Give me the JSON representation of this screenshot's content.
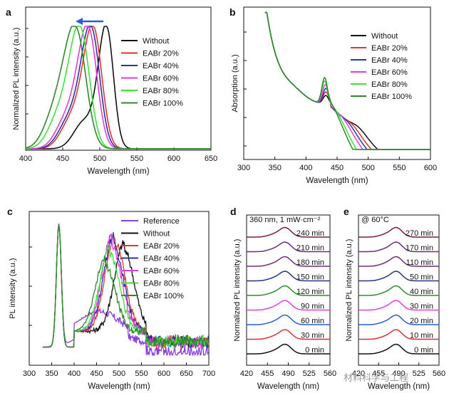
{
  "figure": {
    "watermark": "材料科学与工程"
  },
  "colors": {
    "Without": "#111111",
    "EABr 20%": "#e0352e",
    "EABr 40%": "#2b33a8",
    "EABr 60%": "#e23ddc",
    "EABr 80%": "#3fe03b",
    "EABr 100%": "#2c8a2c",
    "Reference": "#8a3ee0",
    "maroon": "#7a1f35",
    "purple": "#6a2e7f",
    "navy": "#2b3280",
    "green": "#2e8b2e",
    "magenta": "#e43ee0",
    "blue": "#2b5dd4",
    "red": "#d83131",
    "black": "#111111",
    "arrow": "#2f5bd6"
  },
  "chart_data": [
    {
      "panel": "a",
      "type": "line",
      "xlabel": "Wavelength (nm)",
      "ylabel": "Normalized PL intensity (a.u.)",
      "xlim": [
        400,
        650
      ],
      "xticks": [
        400,
        450,
        500,
        550,
        600,
        650
      ],
      "legend": "top-right",
      "annotation": "blue arrow pointing left above peaks",
      "series": [
        {
          "name": "Without",
          "peak": 509,
          "fwhm": 26
        },
        {
          "name": "EABr 20%",
          "peak": 491,
          "fwhm": 32
        },
        {
          "name": "EABr 40%",
          "peak": 488,
          "fwhm": 32
        },
        {
          "name": "EABr 60%",
          "peak": 484,
          "fwhm": 33
        },
        {
          "name": "EABr 80%",
          "peak": 473,
          "fwhm": 35
        },
        {
          "name": "EABr 100%",
          "peak": 467,
          "fwhm": 38
        }
      ]
    },
    {
      "panel": "b",
      "type": "line",
      "xlabel": "Wavelength (nm)",
      "ylabel": "Absorption (a.u.)",
      "xlim": [
        300,
        600
      ],
      "xticks": [
        300,
        350,
        400,
        450,
        500,
        550,
        600
      ],
      "legend": "top-right",
      "series": [
        {
          "name": "Without",
          "exciton_peak": 432,
          "shoulder": 500
        },
        {
          "name": "EABr 20%",
          "exciton_peak": 432,
          "shoulder": 490
        },
        {
          "name": "EABr 40%",
          "exciton_peak": 432,
          "shoulder": 483
        },
        {
          "name": "EABr 60%",
          "exciton_peak": 431,
          "shoulder": 476
        },
        {
          "name": "EABr 80%",
          "exciton_peak": 430,
          "shoulder": 466
        },
        {
          "name": "EABr 100%",
          "exciton_peak": 430,
          "shoulder": 460
        }
      ]
    },
    {
      "panel": "c",
      "type": "line",
      "xlabel": "Wavelength (nm)",
      "ylabel": "PL intensity (a.u.)",
      "xlim": [
        300,
        700
      ],
      "xticks": [
        300,
        350,
        400,
        450,
        500,
        550,
        600,
        650,
        700
      ],
      "legend": "top-right",
      "series": [
        {
          "name": "Reference",
          "peak": 366
        },
        {
          "name": "Without",
          "peak": 366,
          "peak2": 512
        },
        {
          "name": "EABr 20%",
          "peak": 366,
          "peak2": 492
        },
        {
          "name": "EABr 40%",
          "peak": 366,
          "peak2": 488
        },
        {
          "name": "EABr 60%",
          "peak": 366,
          "peak2": 484
        },
        {
          "name": "EABr 80%",
          "peak": 366,
          "peak2": 480
        },
        {
          "name": "EABr 100%",
          "peak": 366,
          "peak2": 470
        }
      ]
    },
    {
      "panel": "d",
      "type": "line",
      "title": "360 nm, 1 mW·cm⁻²",
      "xlabel": "Wavelength (nm)",
      "ylabel": "Normalized PL intensity (a.u.)",
      "xlim": [
        420,
        560
      ],
      "xticks": [
        420,
        455,
        490,
        525,
        560
      ],
      "peak": 485,
      "series": [
        {
          "name": "240 min",
          "color": "maroon"
        },
        {
          "name": "210 min",
          "color": "purple"
        },
        {
          "name": "180 min",
          "color": "purple"
        },
        {
          "name": "150 min",
          "color": "navy"
        },
        {
          "name": "120 min",
          "color": "green"
        },
        {
          "name": "90 min",
          "color": "magenta"
        },
        {
          "name": "60 min",
          "color": "blue"
        },
        {
          "name": "30 min",
          "color": "red"
        },
        {
          "name": "0 min",
          "color": "black"
        }
      ]
    },
    {
      "panel": "e",
      "type": "line",
      "title": "@ 60°C",
      "xlabel": "Wavelength (nm)",
      "ylabel": "Normalized PL intensity (a.u.)",
      "xlim": [
        420,
        560
      ],
      "xticks": [
        420,
        455,
        490,
        525,
        560
      ],
      "peak": 486,
      "series": [
        {
          "name": "270 min",
          "color": "maroon"
        },
        {
          "name": "170 min",
          "color": "purple"
        },
        {
          "name": "110 min",
          "color": "purple"
        },
        {
          "name": "50 min",
          "color": "navy"
        },
        {
          "name": "40 min",
          "color": "green"
        },
        {
          "name": "30 min",
          "color": "magenta"
        },
        {
          "name": "20 min",
          "color": "blue"
        },
        {
          "name": "10 min",
          "color": "red"
        },
        {
          "name": "0 min",
          "color": "black"
        }
      ]
    }
  ]
}
